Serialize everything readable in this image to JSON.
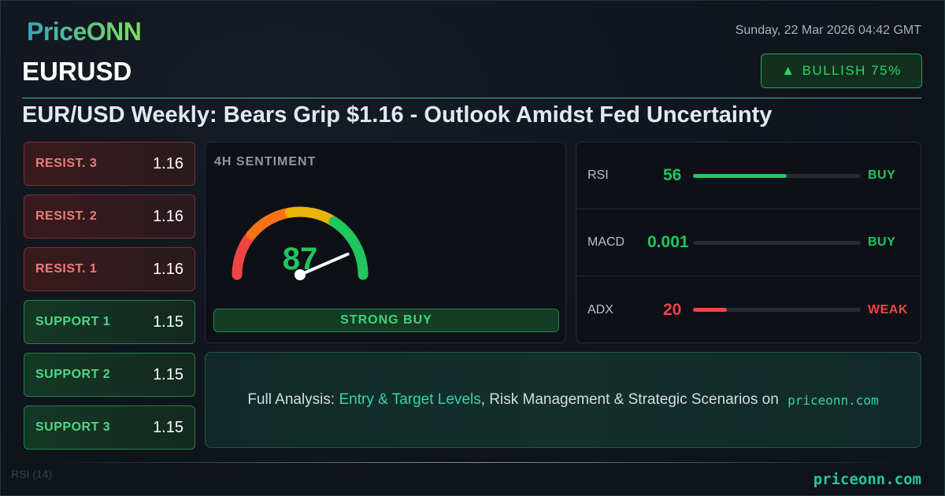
{
  "brand": {
    "logo": "PriceONN",
    "footer_site": "priceonn.com"
  },
  "header": {
    "date": "Sunday, 22 Mar 2026 04:42 GMT",
    "symbol": "EURUSD",
    "bias_label": "BULLISH 75%",
    "bias_icon": "triangle-up-icon",
    "headline": "EUR/USD Weekly: Bears Grip $1.16 - Outlook Amidst Fed Uncertainty"
  },
  "levels": [
    {
      "label": "RESIST. 3",
      "value": "1.16",
      "type": "resistance"
    },
    {
      "label": "RESIST. 2",
      "value": "1.16",
      "type": "resistance"
    },
    {
      "label": "RESIST. 1",
      "value": "1.16",
      "type": "resistance"
    },
    {
      "label": "SUPPORT 1",
      "value": "1.15",
      "type": "support"
    },
    {
      "label": "SUPPORT 2",
      "value": "1.15",
      "type": "support"
    },
    {
      "label": "SUPPORT 3",
      "value": "1.15",
      "type": "support"
    }
  ],
  "sentiment": {
    "title": "4H SENTIMENT",
    "value": 87,
    "value_text": "87",
    "verdict": "STRONG BUY"
  },
  "indicators": [
    {
      "name": "RSI",
      "value": "56",
      "level": 56,
      "signal": "BUY",
      "color": "#22c55e"
    },
    {
      "name": "MACD",
      "value": "0.001",
      "level": 0,
      "signal": "BUY",
      "color": "#22c55e"
    },
    {
      "name": "ADX",
      "value": "20",
      "level": 20,
      "signal": "WEAK",
      "color": "#ef4444"
    }
  ],
  "cta": {
    "prefix": "Full Analysis: ",
    "highlight": "Entry & Target Levels",
    "middle": ", Risk Management & Strategic Scenarios on ",
    "site": "priceonn.com"
  },
  "watermark": {
    "rsi": "RSI (14)"
  },
  "colors": {
    "accent": "#22c9a0",
    "bull": "#22c55e",
    "bear": "#ef4444"
  }
}
